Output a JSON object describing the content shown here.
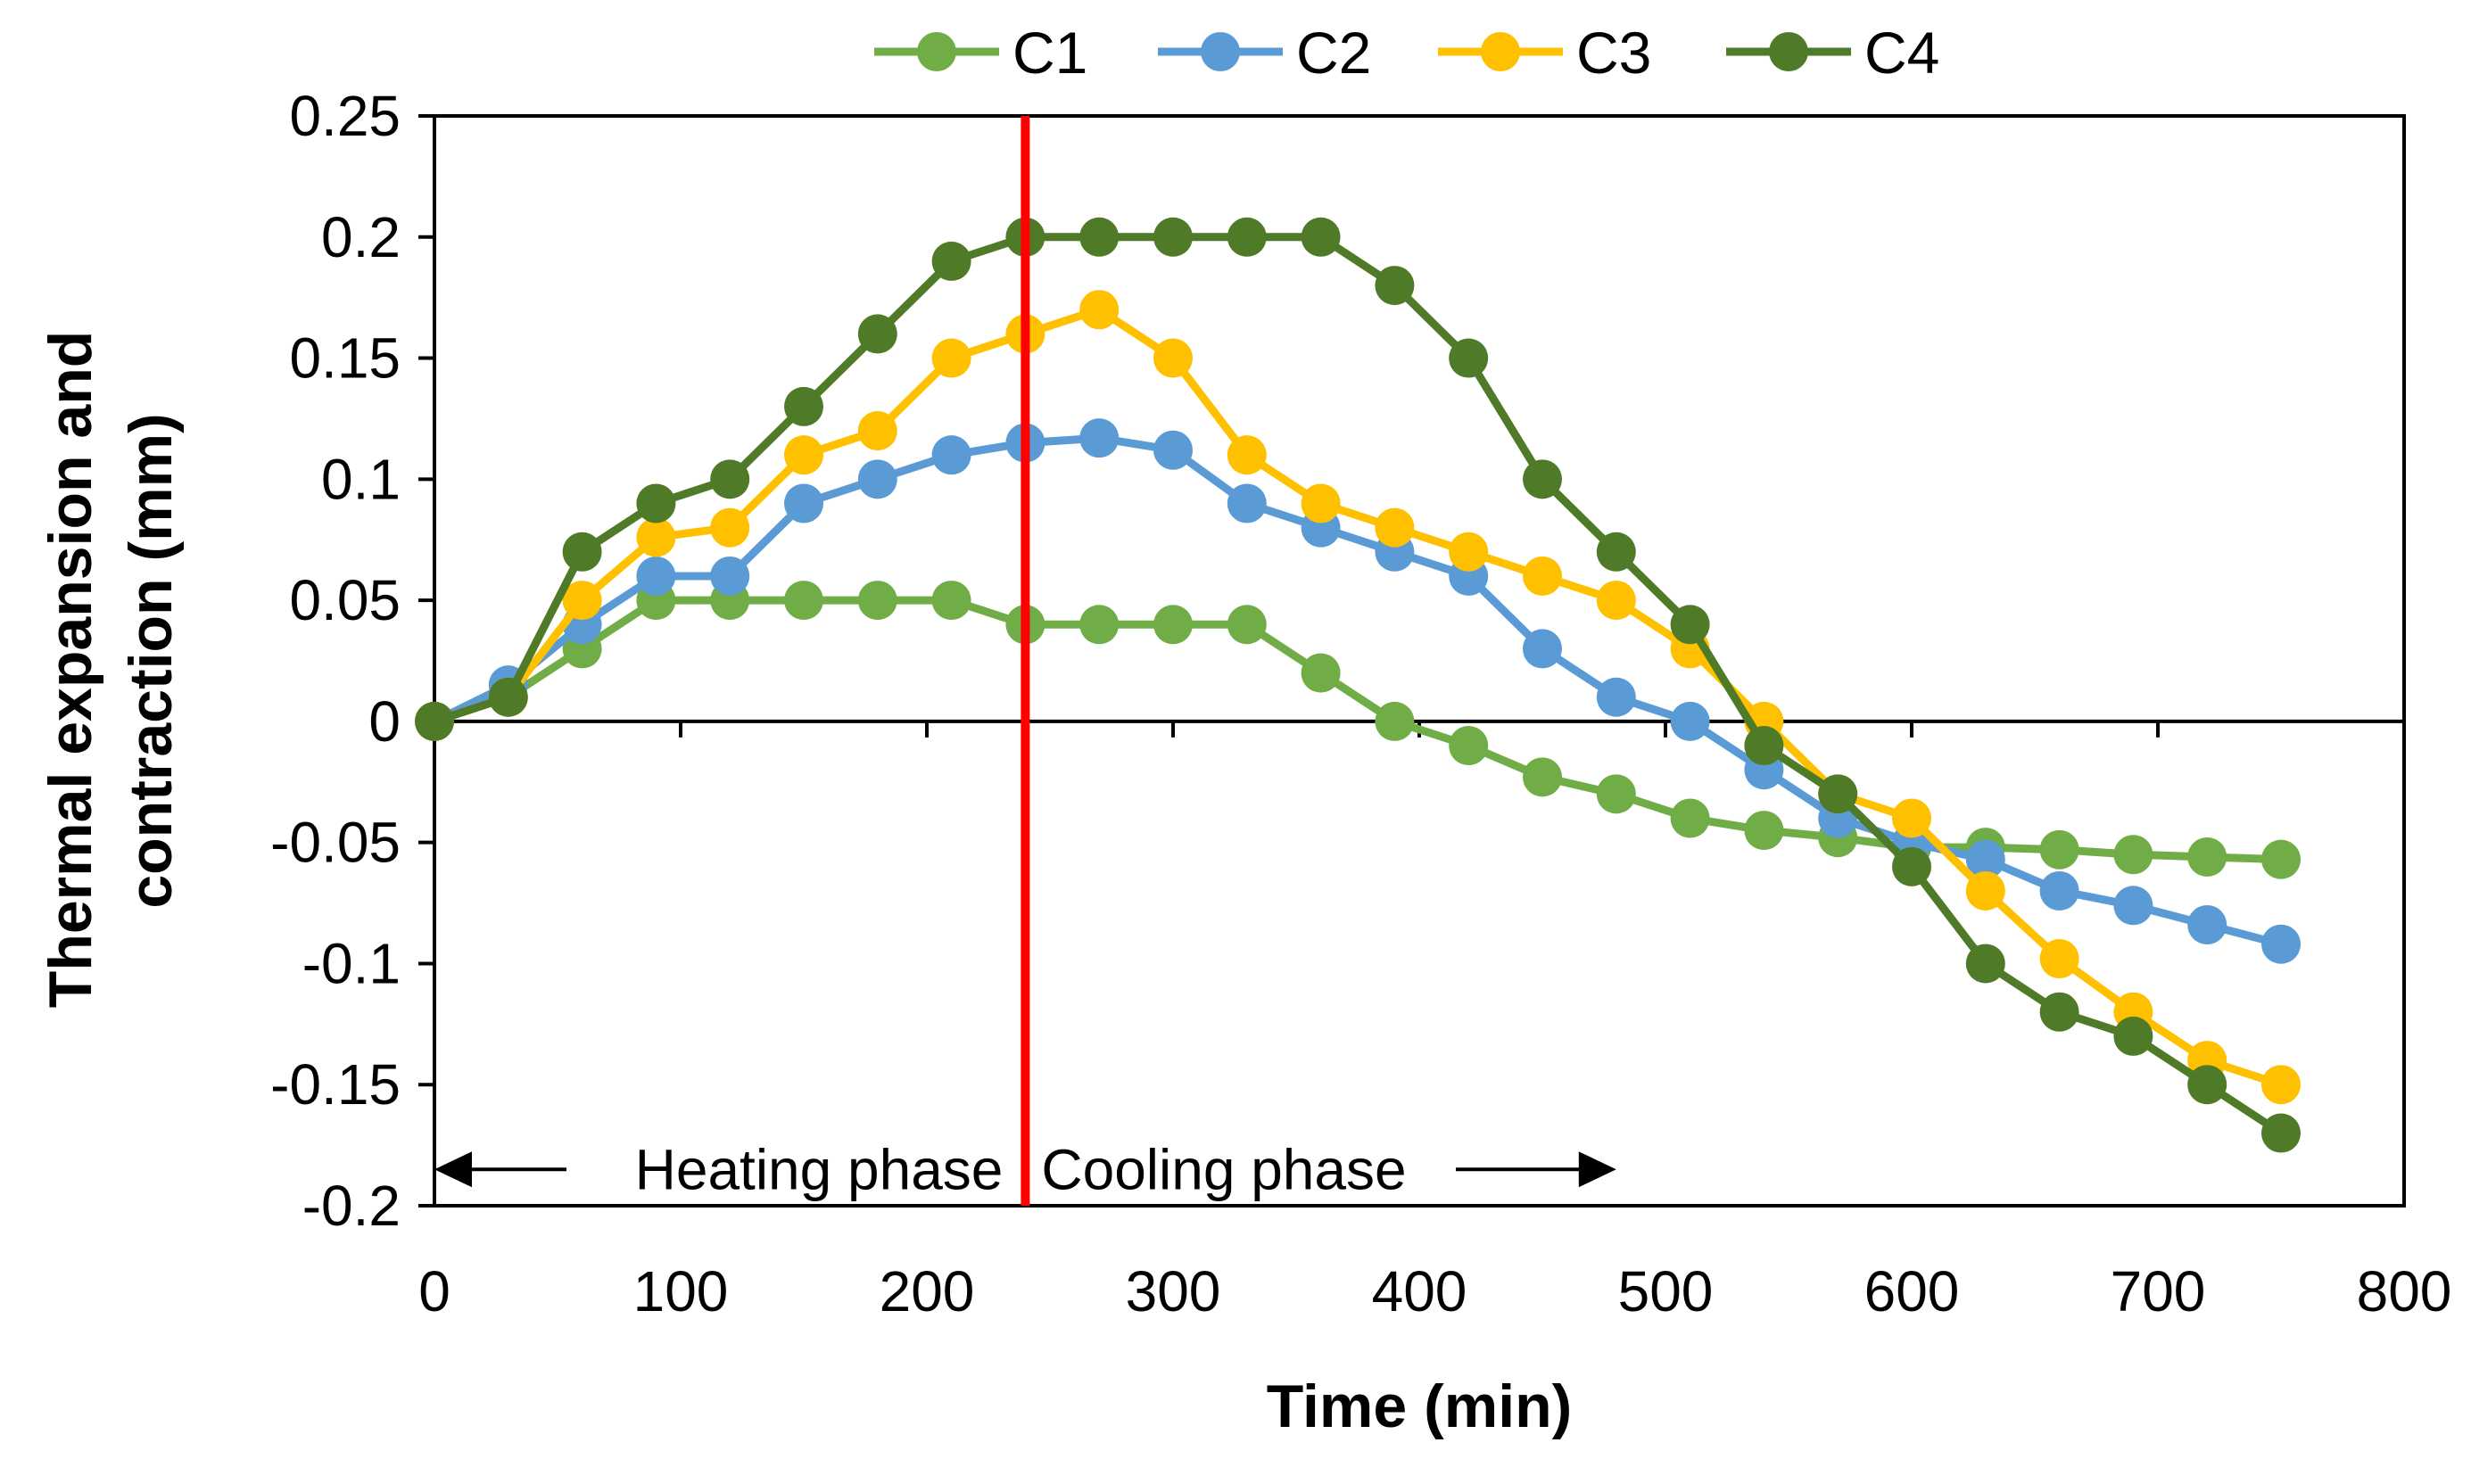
{
  "chart_data": {
    "type": "line",
    "xlabel": "Time (min)",
    "ylabel_lines": [
      "Thermal expansion and",
      "contraction (mm)"
    ],
    "xlim": [
      0,
      800
    ],
    "ylim": [
      -0.2,
      0.25
    ],
    "x_ticks": [
      0,
      100,
      200,
      300,
      400,
      500,
      600,
      700,
      800
    ],
    "y_ticks": [
      0.25,
      0.2,
      0.15,
      0.1,
      0.05,
      0,
      -0.05,
      -0.1,
      -0.15,
      -0.2
    ],
    "x_tick_labels": [
      "0",
      "100",
      "200",
      "300",
      "400",
      "500",
      "600",
      "700",
      "800"
    ],
    "y_tick_labels": [
      "0.25",
      "0.2",
      "0.15",
      "0.1",
      "0.05",
      "0",
      "-0.05",
      "-0.1",
      "-0.15",
      "-0.2"
    ],
    "grid": false,
    "legend_position": "top",
    "x": [
      0,
      30,
      60,
      90,
      120,
      150,
      180,
      210,
      240,
      270,
      300,
      330,
      360,
      390,
      420,
      450,
      480,
      510,
      540,
      570,
      600,
      630,
      660,
      690,
      720,
      750
    ],
    "series": [
      {
        "name": "C1",
        "color": "#70AD47",
        "values": [
          0,
          0.01,
          0.03,
          0.05,
          0.05,
          0.05,
          0.05,
          0.05,
          0.04,
          0.04,
          0.04,
          0.04,
          0.02,
          0,
          -0.01,
          -0.023,
          -0.03,
          -0.04,
          -0.045,
          -0.048,
          -0.052,
          -0.052,
          -0.053,
          -0.055,
          -0.056,
          -0.057
        ]
      },
      {
        "name": "C2",
        "color": "#5B9BD5",
        "values": [
          0,
          0.015,
          0.04,
          0.06,
          0.06,
          0.09,
          0.1,
          0.11,
          0.115,
          0.117,
          0.112,
          0.09,
          0.08,
          0.07,
          0.06,
          0.03,
          0.01,
          0,
          -0.02,
          -0.04,
          -0.05,
          -0.057,
          -0.07,
          -0.076,
          -0.084,
          -0.092
        ]
      },
      {
        "name": "C3",
        "color": "#FFC000",
        "values": [
          0,
          0.01,
          0.05,
          0.076,
          0.08,
          0.11,
          0.12,
          0.15,
          0.16,
          0.17,
          0.15,
          0.11,
          0.09,
          0.08,
          0.07,
          0.06,
          0.05,
          0.03,
          0,
          -0.03,
          -0.04,
          -0.07,
          -0.098,
          -0.12,
          -0.14,
          -0.15
        ]
      },
      {
        "name": "C4",
        "color": "#4F7A28",
        "values": [
          0,
          0.01,
          0.07,
          0.09,
          0.1,
          0.13,
          0.16,
          0.19,
          0.2,
          0.2,
          0.2,
          0.2,
          0.2,
          0.18,
          0.15,
          0.1,
          0.07,
          0.04,
          -0.01,
          -0.03,
          -0.06,
          -0.1,
          -0.12,
          -0.13,
          -0.15,
          -0.17
        ]
      }
    ],
    "phase_divider": {
      "x": 240,
      "color": "#FF0000"
    },
    "annotations": {
      "heating": {
        "text": "Heating phase",
        "arrow_to_x": 0,
        "y": -0.185
      },
      "cooling": {
        "text": "Cooling phase",
        "arrow_to_x": 480,
        "y": -0.185
      }
    }
  }
}
